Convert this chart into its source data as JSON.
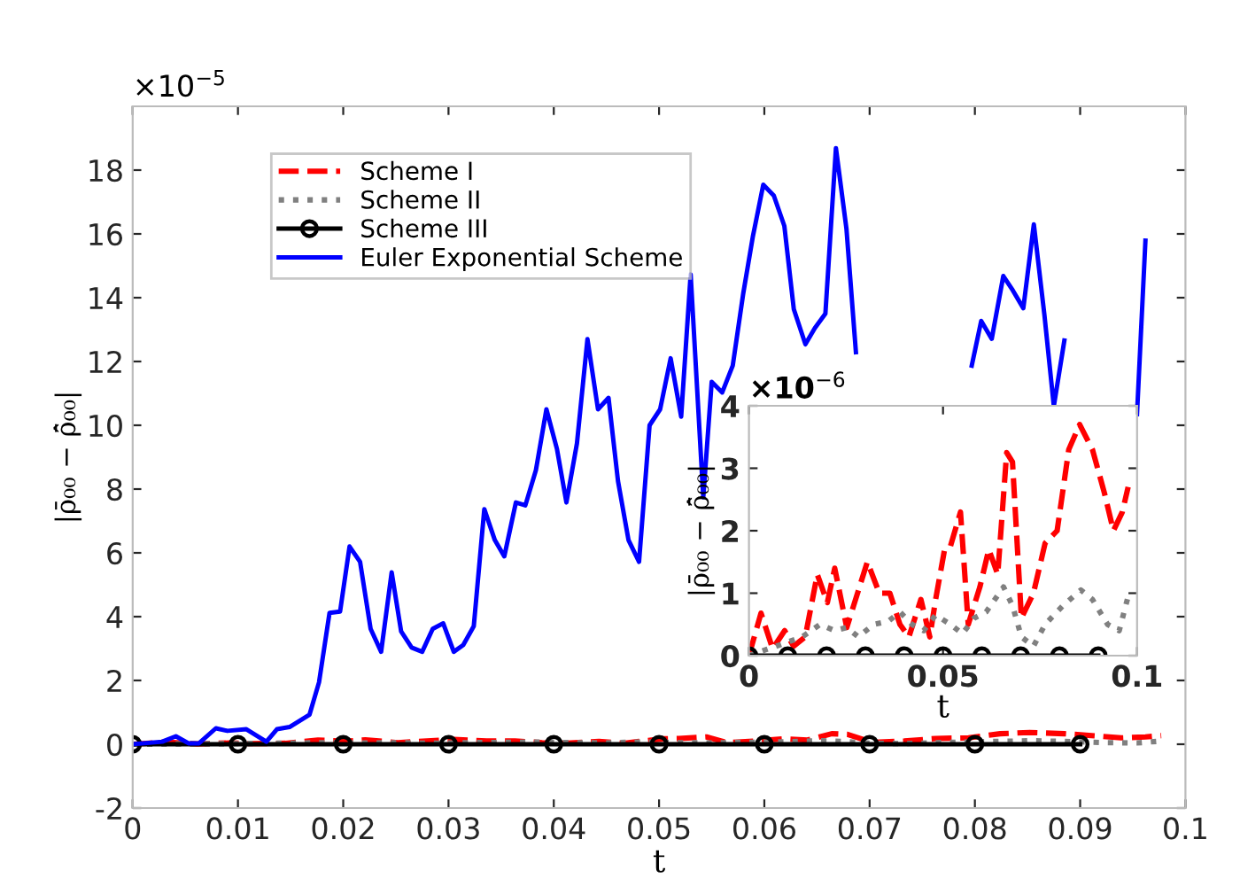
{
  "chart_data": [
    {
      "type": "line",
      "xlabel": "t",
      "ylabel": "|ρ̄₀₀ − ρ̄̂₀₀|",
      "xlim": [
        0,
        0.1
      ],
      "ylim": [
        -2,
        20
      ],
      "xticks": [
        0,
        0.01,
        0.02,
        0.03,
        0.04,
        0.05,
        0.06,
        0.07,
        0.08,
        0.09,
        0.1
      ],
      "yticks": [
        -2,
        0,
        2,
        4,
        6,
        8,
        10,
        12,
        14,
        16,
        18
      ],
      "grid": false,
      "legend": "top left",
      "annotations": [
        "×10$^{−5}$"
      ],
      "series": [
        {
          "name": "Scheme I",
          "color": "#ff0000",
          "line_style": "dashed",
          "marker": "none",
          "x": [
            0,
            0.0031,
            0.0061,
            0.0092,
            0.0115,
            0.0145,
            0.0176,
            0.0202,
            0.0221,
            0.0252,
            0.0305,
            0.0336,
            0.0363,
            0.0389,
            0.0412,
            0.0443,
            0.0466,
            0.0481,
            0.0504,
            0.0519,
            0.0545,
            0.0565,
            0.0595,
            0.0618,
            0.0641,
            0.0664,
            0.0679,
            0.0702,
            0.0733,
            0.0763,
            0.0794,
            0.0824,
            0.0852,
            0.0885,
            0.0916,
            0.0939,
            0.0962,
            0.0977
          ],
          "values": [
            0,
            0.07,
            0.01,
            0.04,
            0.02,
            0.03,
            0.13,
            0.09,
            0.14,
            0.05,
            0.15,
            0.1,
            0.1,
            0.05,
            0.03,
            0.09,
            0.03,
            0.09,
            0.17,
            0.18,
            0.23,
            0.05,
            0.11,
            0.17,
            0.13,
            0.33,
            0.31,
            0.06,
            0.1,
            0.18,
            0.2,
            0.33,
            0.37,
            0.33,
            0.26,
            0.2,
            0.23,
            0.27
          ]
        },
        {
          "name": "Scheme II",
          "color": "#808080",
          "line_style": "dotted",
          "marker": "none",
          "x": [
            0,
            0.0046,
            0.0092,
            0.0137,
            0.0183,
            0.0221,
            0.0252,
            0.0282,
            0.0321,
            0.0359,
            0.0389,
            0.042,
            0.045,
            0.0481,
            0.0519,
            0.055,
            0.058,
            0.0611,
            0.0656,
            0.0679,
            0.0702,
            0.0733,
            0.0763,
            0.0809,
            0.0855,
            0.0885,
            0.0924,
            0.0954,
            0.0977
          ],
          "values": [
            0,
            0.01,
            0.02,
            0.03,
            0.05,
            0.04,
            0.05,
            0.03,
            0.05,
            0.06,
            0.07,
            0.05,
            0.04,
            0.07,
            0.05,
            0.04,
            0.06,
            0.07,
            0.11,
            0.08,
            0.03,
            0.02,
            0.05,
            0.08,
            0.11,
            0.09,
            0.05,
            0.04,
            0.1
          ]
        },
        {
          "name": "Scheme III",
          "color": "#000000",
          "line_style": "solid",
          "marker": "circle",
          "x": [
            0,
            0.01,
            0.02,
            0.03,
            0.04,
            0.05,
            0.06,
            0.07,
            0.08,
            0.09
          ],
          "values": [
            0,
            0,
            0,
            0,
            0,
            0,
            0,
            0,
            0,
            0
          ]
        },
        {
          "name": "Euler Exponential Scheme",
          "color": "#0000ff",
          "line_style": "solid",
          "marker": "none",
          "x": [
            0,
            0.0028,
            0.0041,
            0.0053,
            0.0063,
            0.0079,
            0.009,
            0.0108,
            0.0127,
            0.0137,
            0.0149,
            0.0168,
            0.0177,
            0.0187,
            0.0197,
            0.0206,
            0.0216,
            0.0226,
            0.0236,
            0.0246,
            0.0255,
            0.0265,
            0.0275,
            0.0285,
            0.0295,
            0.0305,
            0.0314,
            0.0324,
            0.0334,
            0.0344,
            0.0353,
            0.0364,
            0.0373,
            0.0383,
            0.0393,
            0.0403,
            0.0412,
            0.0422,
            0.0432,
            0.0442,
            0.0452,
            0.0461,
            0.0471,
            0.0481,
            0.0491,
            0.0501,
            0.0511,
            0.0521,
            0.053,
            0.0542,
            0.055,
            0.056,
            0.057,
            0.058,
            0.0589,
            0.0599,
            0.0609,
            0.0619,
            0.0628,
            0.0639,
            0.0648,
            0.0658,
            0.0668,
            0.0678,
            0.0687,
            0.0692,
            0.075,
            0.0789,
            0.0797,
            0.0806,
            0.0816,
            0.0827,
            0.0836,
            0.0846,
            0.0856,
            0.0866,
            0.0875,
            0.0885,
            0.0895,
            0.0897,
            0.093,
            0.0951,
            0.0954,
            0.0962
          ],
          "values": [
            0,
            0.08,
            0.25,
            0.03,
            0.03,
            0.5,
            0.42,
            0.47,
            0.08,
            0.47,
            0.54,
            0.93,
            1.94,
            4.12,
            4.16,
            6.2,
            5.72,
            3.62,
            2.9,
            5.39,
            3.54,
            3.03,
            2.9,
            3.62,
            3.79,
            2.9,
            3.11,
            3.7,
            7.37,
            6.4,
            5.89,
            7.58,
            7.49,
            8.59,
            10.5,
            9.26,
            7.58,
            9.43,
            12.7,
            10.5,
            10.86,
            8.25,
            6.4,
            5.72,
            10.0,
            10.5,
            12.1,
            10.27,
            14.73,
            7.74,
            11.36,
            11.03,
            11.87,
            14.14,
            15.9,
            17.54,
            17.2,
            16.25,
            13.64,
            12.54,
            13.05,
            13.5,
            18.69,
            16.16,
            12.29,
            null,
            null,
            null,
            11.87,
            13.27,
            12.71,
            14.68,
            14.23,
            13.67,
            16.3,
            13.47,
            10.6,
            12.66,
            null,
            null,
            null,
            null,
            10.35,
            15.79
          ]
        }
      ]
    },
    {
      "type": "line",
      "xlabel": "t",
      "ylabel": "|ρ̄₀₀ − ρ̄̂₀₀|",
      "xlim": [
        0,
        0.1
      ],
      "ylim": [
        0,
        4
      ],
      "xticks": [
        0,
        0.05,
        0.1
      ],
      "yticks": [
        0,
        1,
        2,
        3,
        4
      ],
      "grid": false,
      "legend": false,
      "annotations": [
        "×10$^{−6}$"
      ],
      "series": [
        {
          "color": "#ff0000",
          "line_style": "dashed",
          "marker": "none",
          "x": [
            0,
            0.0031,
            0.0061,
            0.0092,
            0.0115,
            0.0145,
            0.0176,
            0.0202,
            0.0221,
            0.0252,
            0.0305,
            0.0336,
            0.0363,
            0.0389,
            0.0412,
            0.0443,
            0.0466,
            0.0481,
            0.0504,
            0.0519,
            0.0545,
            0.0565,
            0.0595,
            0.0618,
            0.0641,
            0.0664,
            0.0679,
            0.0702,
            0.0733,
            0.0763,
            0.0794,
            0.0824,
            0.0852,
            0.0885,
            0.0916,
            0.0939,
            0.0962,
            0.0977
          ],
          "values": [
            0,
            0.68,
            0.11,
            0.4,
            0.15,
            0.3,
            1.3,
            0.85,
            1.4,
            0.45,
            1.5,
            1.0,
            1.0,
            0.5,
            0.3,
            0.9,
            0.3,
            0.9,
            1.7,
            1.75,
            2.3,
            0.5,
            1.1,
            1.7,
            1.3,
            3.25,
            3.1,
            0.6,
            1.0,
            1.8,
            2.0,
            3.3,
            3.7,
            3.3,
            2.6,
            2.0,
            2.3,
            2.7
          ]
        },
        {
          "color": "#808080",
          "line_style": "dotted",
          "marker": "none",
          "x": [
            0,
            0.0046,
            0.0092,
            0.0137,
            0.0183,
            0.0221,
            0.0252,
            0.0282,
            0.0321,
            0.0359,
            0.0389,
            0.042,
            0.045,
            0.0481,
            0.0519,
            0.055,
            0.058,
            0.0611,
            0.0656,
            0.0679,
            0.0702,
            0.0733,
            0.0763,
            0.0809,
            0.0855,
            0.0885,
            0.0924,
            0.0954,
            0.0977
          ],
          "values": [
            0,
            0.1,
            0.2,
            0.3,
            0.5,
            0.4,
            0.45,
            0.3,
            0.5,
            0.55,
            0.7,
            0.5,
            0.4,
            0.65,
            0.5,
            0.35,
            0.6,
            0.7,
            1.1,
            0.8,
            0.3,
            0.15,
            0.5,
            0.8,
            1.05,
            0.9,
            0.5,
            0.4,
            0.95
          ]
        },
        {
          "color": "#000000",
          "line_style": "solid",
          "marker": "circle",
          "x": [
            0,
            0.01,
            0.02,
            0.03,
            0.04,
            0.05,
            0.06,
            0.07,
            0.08,
            0.09
          ],
          "values": [
            0,
            0,
            0,
            0,
            0,
            0,
            0,
            0,
            0,
            0
          ]
        }
      ]
    }
  ]
}
